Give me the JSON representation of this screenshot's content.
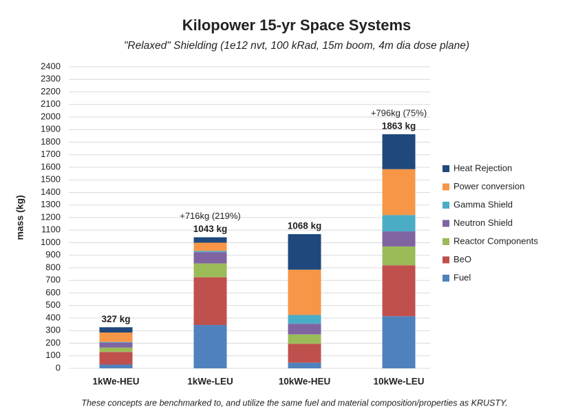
{
  "chart_data": {
    "type": "stacked_bar",
    "title": "Kilopower 15-yr Space Systems",
    "subtitle": "\"Relaxed\" Shielding (1e12 nvt, 100 kRad, 15m boom, 4m dia dose plane)",
    "y_label": "mass (kg)",
    "footnote": "These concepts are benchmarked to, and utilize the same fuel and material composition/properties as KRUSTY.",
    "categories": [
      "1kWe-HEU",
      "1kWe-LEU",
      "10kWe-HEU",
      "10kWe-LEU"
    ],
    "total_labels": [
      "327 kg",
      "1043 kg",
      "1068 kg",
      "1863 kg"
    ],
    "increase_labels": [
      null,
      "+716kg (219%)",
      null,
      "+796kg (75%)"
    ],
    "series": [
      {
        "name": "Fuel",
        "color": "#4f81bd",
        "values": [
          30,
          345,
          45,
          415
        ]
      },
      {
        "name": "BeO",
        "color": "#c0504d",
        "values": [
          100,
          380,
          150,
          405
        ]
      },
      {
        "name": "Reactor Components",
        "color": "#9bbb59",
        "values": [
          35,
          110,
          75,
          150
        ]
      },
      {
        "name": "Neutron Shield",
        "color": "#8064a2",
        "values": [
          40,
          90,
          85,
          120
        ]
      },
      {
        "name": "Gamma Shield",
        "color": "#4bacc6",
        "values": [
          5,
          10,
          70,
          130
        ]
      },
      {
        "name": "Power conversion",
        "color": "#f79646",
        "values": [
          75,
          65,
          360,
          365
        ]
      },
      {
        "name": "Heat Rejection",
        "color": "#1f497d",
        "values": [
          42,
          43,
          283,
          278
        ]
      }
    ],
    "ylim": [
      0,
      2400
    ],
    "yticks": [
      0,
      100,
      200,
      300,
      400,
      500,
      600,
      700,
      800,
      900,
      1000,
      1100,
      1200,
      1300,
      1400,
      1500,
      1600,
      1700,
      1800,
      1900,
      2000,
      2100,
      2200,
      2300,
      2400
    ],
    "grid": true,
    "legend": "right"
  }
}
